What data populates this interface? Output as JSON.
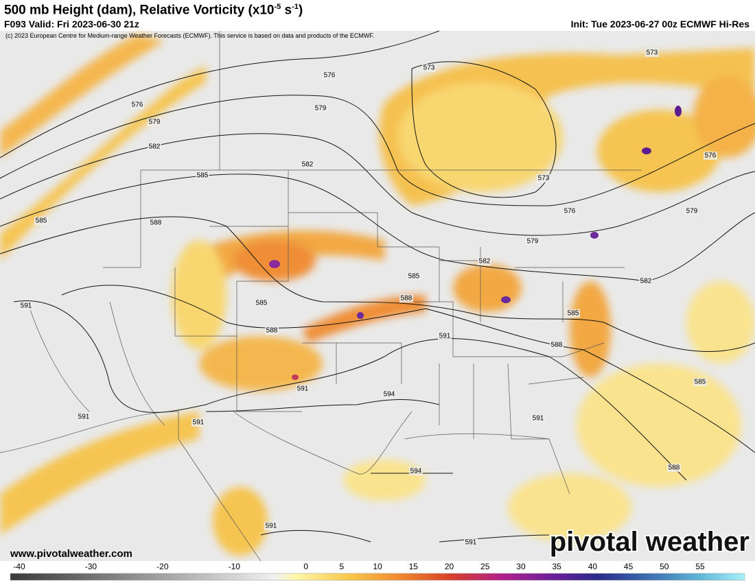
{
  "header": {
    "title": "500 mb Height (dam), Relative Vorticity (x10",
    "title_exp1": "-5",
    "title_unit": " s",
    "title_exp2": "-1",
    "title_close": ")",
    "valid": "F093 Valid: Fri 2023-06-30 21z",
    "init": "Init: Tue 2023-06-27 00z ECMWF Hi-Res",
    "copyright": "(c) 2023 European Centre for Medium-range Weather Forecasts (ECMWF). This service is based on data and products of the ECMWF."
  },
  "map": {
    "contour_labels": [
      "573",
      "573",
      "576",
      "579",
      "576",
      "579",
      "582",
      "582",
      "585",
      "573",
      "576",
      "576",
      "579",
      "585",
      "588",
      "579",
      "582",
      "585",
      "582",
      "588",
      "585",
      "591",
      "588",
      "585",
      "591",
      "588",
      "591",
      "594",
      "585",
      "591",
      "591",
      "591",
      "594",
      "588",
      "591",
      "591"
    ]
  },
  "footer": {
    "website": "www.pivotalweather.com",
    "brand": "pivotal weather"
  },
  "colorbar": {
    "ticks": [
      -40,
      -30,
      -20,
      -10,
      0,
      5,
      10,
      15,
      20,
      25,
      30,
      35,
      40,
      45,
      50,
      55
    ]
  }
}
